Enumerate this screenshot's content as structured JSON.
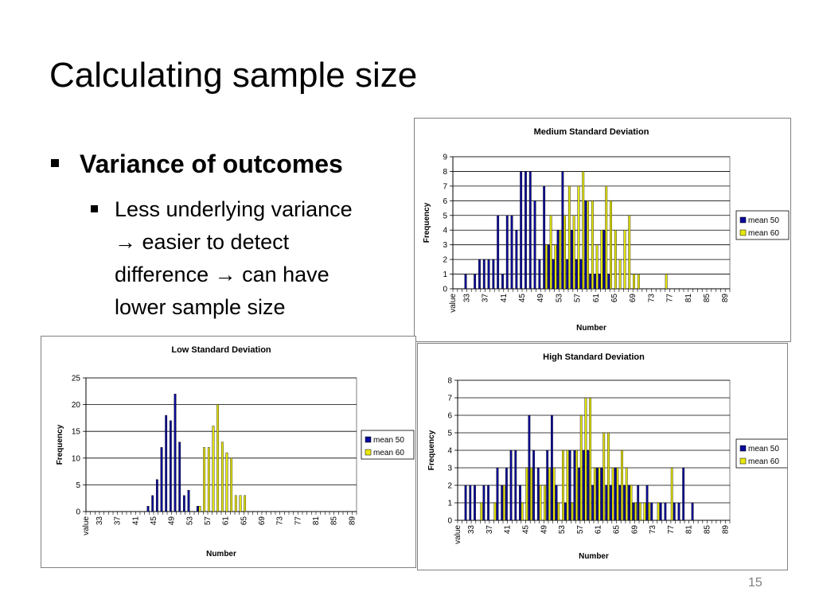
{
  "slide": {
    "title": "Calculating sample size",
    "bullet_main": "Variance of outcomes",
    "bullet_sub_lines": [
      "Less underlying variance",
      "→ easier to detect",
      "difference → can have",
      "lower sample size"
    ],
    "page_number": "15"
  },
  "colors": {
    "mean50": "#0a0a9a",
    "mean60": "#e8e80c",
    "plot_bg": "#ffffff",
    "grid": "#000000"
  },
  "chart_data": [
    {
      "id": "medium",
      "type": "bar",
      "title": "Medium Standard Deviation",
      "xlabel": "Number",
      "ylabel": "Frequency",
      "first_tick": "value",
      "x_tick_labels": [
        "33",
        "37",
        "41",
        "45",
        "49",
        "53",
        "57",
        "61",
        "65",
        "69",
        "73",
        "77",
        "81",
        "85",
        "89"
      ],
      "x_range": [
        30,
        90
      ],
      "ylim": [
        0,
        9
      ],
      "y_ticks": [
        0,
        1,
        2,
        3,
        4,
        5,
        6,
        7,
        8,
        9
      ],
      "legend_position": "right",
      "series": [
        {
          "name": "mean 50",
          "x": [
            33,
            35,
            36,
            37,
            38,
            39,
            40,
            41,
            42,
            43,
            44,
            45,
            46,
            47,
            48,
            49,
            50,
            51,
            52,
            53,
            54,
            55,
            56,
            57,
            58,
            59,
            60,
            61,
            62,
            63,
            64
          ],
          "values": [
            1,
            1,
            2,
            2,
            2,
            2,
            5,
            1,
            5,
            5,
            4,
            8,
            8,
            8,
            6,
            2,
            7,
            3,
            2,
            4,
            8,
            2,
            4,
            2,
            2,
            6,
            1,
            1,
            1,
            4,
            1
          ]
        },
        {
          "name": "mean 60",
          "x": [
            50,
            51,
            52,
            53,
            54,
            55,
            56,
            57,
            58,
            59,
            60,
            61,
            62,
            63,
            64,
            65,
            66,
            67,
            68,
            69,
            70,
            71,
            72,
            76
          ],
          "values": [
            3,
            5,
            3,
            4,
            5,
            7,
            5,
            7,
            8,
            6,
            6,
            3,
            4,
            7,
            6,
            4,
            2,
            4,
            5,
            1,
            1,
            0,
            0,
            1
          ]
        }
      ]
    },
    {
      "id": "low",
      "type": "bar",
      "title": "Low Standard Deviation",
      "xlabel": "Number",
      "ylabel": "Frequency",
      "first_tick": "value",
      "x_tick_labels": [
        "33",
        "37",
        "41",
        "45",
        "49",
        "53",
        "57",
        "61",
        "65",
        "69",
        "73",
        "77",
        "81",
        "85",
        "89"
      ],
      "x_range": [
        30,
        90
      ],
      "ylim": [
        0,
        25
      ],
      "y_ticks": [
        0,
        5,
        10,
        15,
        20,
        25
      ],
      "legend_position": "right",
      "series": [
        {
          "name": "mean 50",
          "x": [
            44,
            45,
            46,
            47,
            48,
            49,
            50,
            51,
            52,
            53,
            54,
            55
          ],
          "values": [
            1,
            3,
            6,
            12,
            18,
            17,
            22,
            13,
            3,
            4,
            0,
            1
          ]
        },
        {
          "name": "mean 60",
          "x": [
            55,
            56,
            57,
            58,
            59,
            60,
            61,
            62,
            63,
            64,
            65
          ],
          "values": [
            1,
            12,
            12,
            16,
            20,
            13,
            11,
            10,
            3,
            3,
            3
          ]
        }
      ]
    },
    {
      "id": "high",
      "type": "bar",
      "title": "High Standard Deviation",
      "xlabel": "Number",
      "ylabel": "Frequency",
      "first_tick": "value",
      "x_tick_labels": [
        "33",
        "37",
        "41",
        "45",
        "49",
        "53",
        "57",
        "61",
        "65",
        "69",
        "73",
        "77",
        "81",
        "85",
        "89"
      ],
      "x_range": [
        30,
        90
      ],
      "ylim": [
        0,
        8
      ],
      "y_ticks": [
        0,
        1,
        2,
        3,
        4,
        5,
        6,
        7,
        8
      ],
      "legend_position": "right",
      "series": [
        {
          "name": "mean 50",
          "x": [
            32,
            33,
            34,
            36,
            37,
            39,
            40,
            41,
            42,
            43,
            44,
            46,
            47,
            48,
            50,
            51,
            52,
            54,
            55,
            56,
            57,
            58,
            59,
            60,
            61,
            62,
            63,
            64,
            65,
            66,
            67,
            68,
            69,
            70,
            72,
            73,
            75,
            76,
            78,
            79,
            80,
            82
          ],
          "values": [
            2,
            2,
            2,
            2,
            2,
            3,
            2,
            3,
            4,
            4,
            2,
            6,
            4,
            3,
            4,
            6,
            2,
            1,
            4,
            4,
            3,
            4,
            4,
            2,
            3,
            3,
            2,
            2,
            3,
            2,
            2,
            2,
            1,
            2,
            2,
            1,
            1,
            1,
            1,
            1,
            3,
            1
          ]
        },
        {
          "name": "mean 60",
          "x": [
            35,
            38,
            40,
            44,
            45,
            46,
            48,
            49,
            50,
            51,
            52,
            53,
            54,
            55,
            56,
            57,
            58,
            59,
            60,
            61,
            62,
            63,
            64,
            65,
            66,
            67,
            68,
            69,
            70,
            71,
            72,
            74,
            77
          ],
          "values": [
            1,
            1,
            2,
            1,
            3,
            3,
            2,
            2,
            3,
            3,
            1,
            4,
            4,
            1,
            4,
            6,
            7,
            7,
            3,
            3,
            5,
            5,
            3,
            3,
            4,
            3,
            2,
            1,
            1,
            1,
            1,
            1,
            3
          ]
        }
      ]
    }
  ]
}
